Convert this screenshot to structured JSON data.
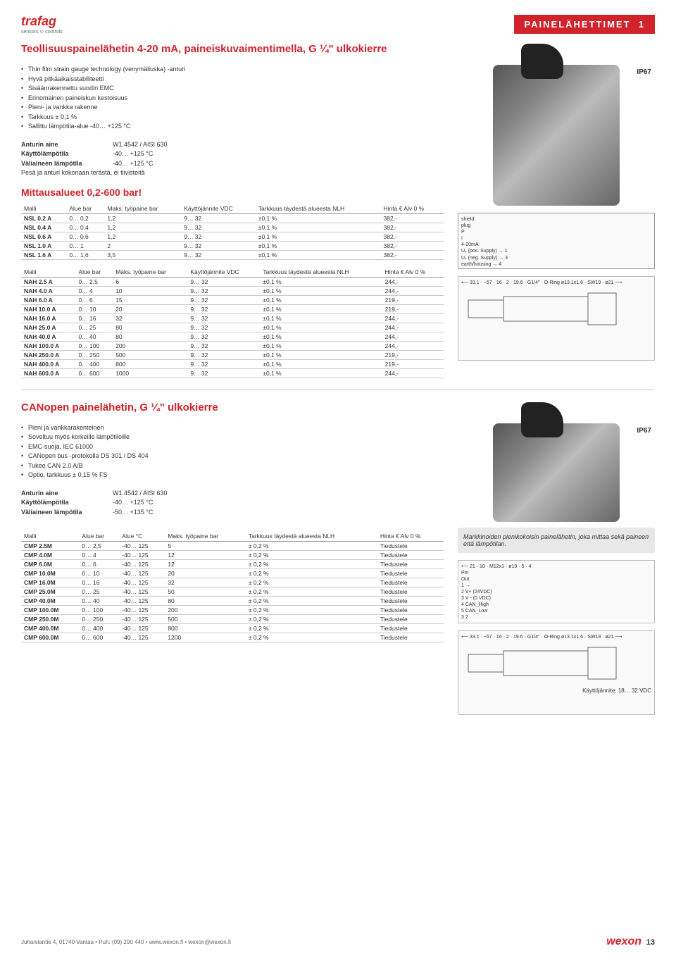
{
  "header": {
    "logo": "trafag",
    "logo_sub": "sensors ⊙ controls",
    "category": "PAINELÄHETTIMET",
    "page_marker": "1"
  },
  "section1": {
    "title": "Teollisuuspainelähetin 4-20 mA, paineiskuvaimentimella, G ¼\" ulkokierre",
    "ip": "IP67",
    "bullets": [
      "Thin film strain gauge technology (venymäliuska) -anturi",
      "Hyvä pitkäaikaisstabiliteetti",
      "Sisäänrakennettu suodin EMC",
      "Erinomainen paineiskun kestoisuus",
      "Pieni- ja vankka rakenne",
      "Tarkkuus ± 0,1 %",
      "Sallittu lämpötila-alue -40… +125 °C"
    ],
    "specs": {
      "Anturin aine": "W1.4542 / AISI 630",
      "Käyttölämpötila": "-40… +125 °C",
      "Väliaineen lämpötila": "-40… +125 °C",
      "extra": "Pesä ja anturi kokonaan terästä, ei tiivisteitä"
    },
    "range_title": "Mittausalueet 0,2-600 bar!",
    "table1": {
      "headers": [
        "Malli",
        "Alue bar",
        "Maks. työpaine bar",
        "Käyttöjännite VDC",
        "Tarkkuus täydestä alueesta NLH",
        "Hinta € Alv 0 %"
      ],
      "rows": [
        [
          "NSL 0.2 A",
          "0… 0,2",
          "1,2",
          "9… 32",
          "±0,1 %",
          "382,-"
        ],
        [
          "NSL 0.4 A",
          "0… 0,4",
          "1,2",
          "9… 32",
          "±0,1 %",
          "382,-"
        ],
        [
          "NSL 0.6 A",
          "0… 0,6",
          "1,2",
          "9… 32",
          "±0,1 %",
          "382,-"
        ],
        [
          "NSL 1.0 A",
          "0… 1",
          "2",
          "9… 32",
          "±0,1 %",
          "382,-"
        ],
        [
          "NSL 1.6 A",
          "0… 1,6",
          "3,5",
          "9… 32",
          "±0,1 %",
          "382,-"
        ]
      ]
    },
    "table2": {
      "headers": [
        "Malli",
        "Alue bar",
        "Maks. työpaine bar",
        "Käyttöjännite VDC",
        "Tarkkuus täydestä alueesta NLH",
        "Hinta € Alv 0 %"
      ],
      "rows": [
        [
          "NAH 2.5 A",
          "0… 2,5",
          "6",
          "9… 32",
          "±0,1 %",
          "244,-"
        ],
        [
          "NAH 4.0 A",
          "0… 4",
          "10",
          "9… 32",
          "±0,1 %",
          "244,-"
        ],
        [
          "NAH 6.0 A",
          "0… 6",
          "15",
          "9… 32",
          "±0,1 %",
          "219,-"
        ],
        [
          "NAH 10.0 A",
          "0… 10",
          "20",
          "9… 32",
          "±0,1 %",
          "219,-"
        ],
        [
          "NAH 16.0 A",
          "0… 16",
          "32",
          "9… 32",
          "±0,1 %",
          "244,-"
        ],
        [
          "NAH 25.0 A",
          "0… 25",
          "80",
          "9… 32",
          "±0,1 %",
          "244,-"
        ],
        [
          "NAH 40.0 A",
          "0… 40",
          "80",
          "9… 32",
          "±0,1 %",
          "244,-"
        ],
        [
          "NAH 100.0 A",
          "0… 100",
          "200",
          "9… 32",
          "±0,1 %",
          "244,-"
        ],
        [
          "NAH 250.0 A",
          "0… 250",
          "500",
          "9… 32",
          "±0,1 %",
          "219,-"
        ],
        [
          "NAH 400.0 A",
          "0… 400",
          "800",
          "9… 32",
          "±0,1 %",
          "219,-"
        ],
        [
          "NAH 600.0 A",
          "0… 600",
          "1000",
          "9… 32",
          "±0,1 %",
          "244,-"
        ]
      ]
    },
    "diagram1": {
      "labels": [
        "shield",
        "plug",
        "P",
        "I",
        "4-20mA",
        "Uₛ (pos. Supply) → 1",
        "Uₛ (neg. Supply) → 3",
        "earth/housing → 4"
      ]
    },
    "drawing1": {
      "dims": [
        "33.1",
        "~57",
        "16",
        "2",
        "19.6",
        "G1/4\"",
        "O-Ring ø13.1x1.6",
        "SW19",
        "ø21"
      ]
    }
  },
  "section2": {
    "title": "CANopen painelähetin, G ¼\" ulkokierre",
    "ip": "IP67",
    "bullets": [
      "Pieni ja vankkarakenteinen",
      "Soveltuu myös korkeille lämpötiloille",
      "EMC-suoja, IEC 61000",
      "CANopen bus -protokolla DS 301 / DS 404",
      "Tukee CAN  2.0 A/B",
      "Optio, tarkkuus ± 0,15 % FS"
    ],
    "specs": {
      "Anturin aine": "W1.4542 / AISI 630",
      "Käyttölämpötila": "-40… +125 °C",
      "Väliaineen lämpötila": "-50… +135 °C"
    },
    "note": "Markkinoiden pienikokoisin painelähetin, joka mittaa sekä paineen että lämpötilan.",
    "table": {
      "headers": [
        "Malli",
        "Alue bar",
        "Alue °C",
        "Maks. työpaine bar",
        "Tarkkuus täydestä alueesta NLH",
        "Hinta € Alv 0 %"
      ],
      "rows": [
        [
          "CMP 2.5M",
          "0… 2,5",
          "-40… 125",
          "5",
          "± 0,2 %",
          "Tiedustele"
        ],
        [
          "CMP 4.0M",
          "0… 4",
          "-40… 125",
          "12",
          "± 0,2 %",
          "Tiedustele"
        ],
        [
          "CMP 6.0M",
          "0… 6",
          "-40… 125",
          "12",
          "± 0,2 %",
          "Tiedustele"
        ],
        [
          "CMP 10.0M",
          "0… 10",
          "-40… 125",
          "20",
          "± 0,2 %",
          "Tiedustele"
        ],
        [
          "CMP 16.0M",
          "0… 16",
          "-40… 125",
          "32",
          "± 0,2 %",
          "Tiedustele"
        ],
        [
          "CMP 25.0M",
          "0… 25",
          "-40… 125",
          "50",
          "± 0,2 %",
          "Tiedustele"
        ],
        [
          "CMP 40.0M",
          "0… 40",
          "-40… 125",
          "80",
          "± 0,2 %",
          "Tiedustele"
        ],
        [
          "CMP 100.0M",
          "0… 100",
          "-40… 125",
          "200",
          "± 0,2 %",
          "Tiedustele"
        ],
        [
          "CMP 250.0M",
          "0… 250",
          "-40… 125",
          "500",
          "± 0,2 %",
          "Tiedustele"
        ],
        [
          "CMP 400.0M",
          "0… 400",
          "-40… 125",
          "800",
          "± 0,2 %",
          "Tiedustele"
        ],
        [
          "CMP 600.0M",
          "0… 600",
          "-40… 125",
          "1200",
          "± 0,2 %",
          "Tiedustele"
        ]
      ]
    },
    "connector": {
      "dims": [
        "21",
        "10",
        "M12x1",
        "ø19",
        "5",
        "4"
      ],
      "pins": [
        "Pin",
        "Out",
        "1  →",
        "2  V+ (24VDC)",
        "3  V - (0 VDC)",
        "4  CAN_High",
        "5  CAN_Low",
        "3 2"
      ]
    },
    "drawing2": {
      "dims": [
        "33.1",
        "~57",
        "16",
        "2",
        "19.6",
        "G1/4\"",
        "O-Ring ø13.1x1.6",
        "SW19",
        "ø21"
      ],
      "voltage": "Käyttöjännite: 18… 32 VDC"
    }
  },
  "footer": {
    "address": "Juhanilantie 4, 01740 Vantaa • Puh. (09) 290 440 • www.wexon.fi • wexon@wexon.fi",
    "logo": "wexon",
    "page": "13"
  }
}
